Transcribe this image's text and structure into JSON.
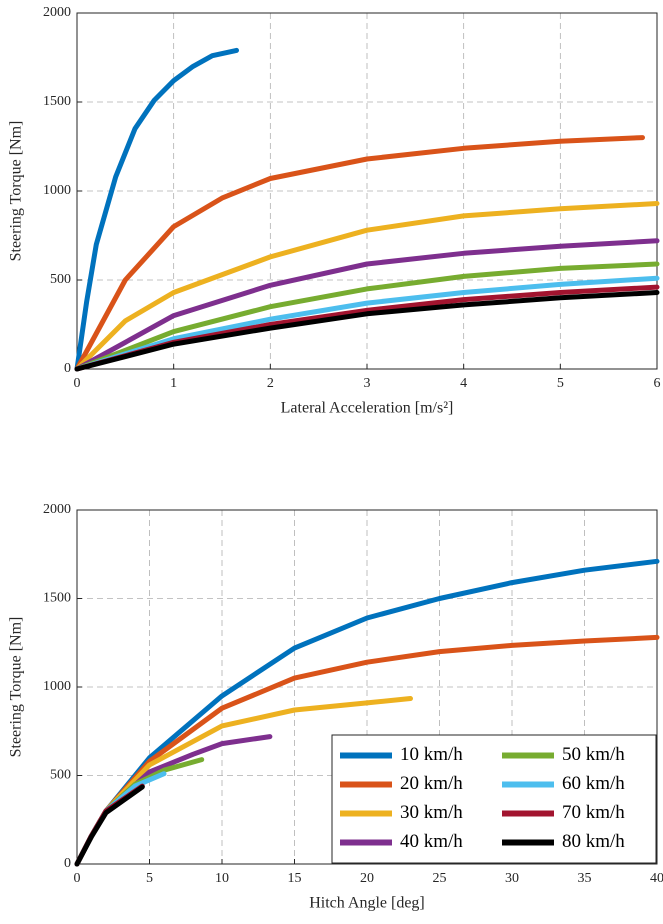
{
  "chart_data": [
    {
      "type": "line",
      "xlabel": "Lateral Acceleration [m/s²]",
      "ylabel": "Steering Torque [Nm]",
      "xlim": [
        0,
        6
      ],
      "xticks": [
        0,
        1,
        2,
        3,
        4,
        5,
        6
      ],
      "ylim": [
        0,
        2000
      ],
      "yticks": [
        0,
        500,
        1000,
        1500,
        2000
      ],
      "grid": true,
      "series": [
        {
          "color": "#0072bd",
          "x": [
            0,
            0.1,
            0.2,
            0.4,
            0.6,
            0.8,
            1.0,
            1.2,
            1.4,
            1.65
          ],
          "values": [
            0,
            380,
            700,
            1080,
            1350,
            1510,
            1620,
            1700,
            1760,
            1790
          ]
        },
        {
          "color": "#d95319",
          "x": [
            0,
            0.5,
            1,
            1.5,
            2,
            3,
            4,
            5,
            5.85
          ],
          "values": [
            0,
            500,
            800,
            960,
            1070,
            1180,
            1240,
            1280,
            1300
          ]
        },
        {
          "color": "#edb120",
          "x": [
            0,
            0.5,
            1,
            2,
            3,
            4,
            5,
            6
          ],
          "values": [
            0,
            270,
            430,
            630,
            780,
            860,
            900,
            930
          ]
        },
        {
          "color": "#7e2f8e",
          "x": [
            0,
            1,
            2,
            3,
            4,
            5,
            6
          ],
          "values": [
            0,
            300,
            470,
            590,
            650,
            690,
            720
          ]
        },
        {
          "color": "#77ac30",
          "x": [
            0,
            1,
            2,
            3,
            4,
            5,
            6
          ],
          "values": [
            0,
            210,
            350,
            450,
            520,
            565,
            590
          ]
        },
        {
          "color": "#4dbeee",
          "x": [
            0,
            1,
            2,
            3,
            4,
            5,
            6
          ],
          "values": [
            0,
            170,
            280,
            370,
            430,
            475,
            510
          ]
        },
        {
          "color": "#a2142f",
          "x": [
            0,
            1,
            2,
            3,
            4,
            5,
            6
          ],
          "values": [
            0,
            150,
            250,
            330,
            390,
            430,
            460
          ]
        },
        {
          "color": "#000000",
          "x": [
            0,
            1,
            2,
            3,
            4,
            5,
            6
          ],
          "values": [
            0,
            140,
            230,
            310,
            360,
            400,
            430
          ]
        }
      ]
    },
    {
      "type": "line",
      "xlabel": "Hitch Angle [deg]",
      "ylabel": "Steering Torque [Nm]",
      "xlim": [
        0,
        40
      ],
      "xticks": [
        0,
        5,
        10,
        15,
        20,
        25,
        30,
        35,
        40
      ],
      "ylim": [
        0,
        2000
      ],
      "yticks": [
        0,
        500,
        1000,
        1500,
        2000
      ],
      "grid": true,
      "legend": "lower right",
      "series": [
        {
          "name": "10 km/h",
          "color": "#0072bd",
          "x": [
            0,
            1,
            2,
            5,
            10,
            15,
            20,
            25,
            30,
            35,
            40
          ],
          "values": [
            0,
            160,
            300,
            600,
            950,
            1220,
            1390,
            1500,
            1590,
            1660,
            1710
          ]
        },
        {
          "name": "20 km/h",
          "color": "#d95319",
          "x": [
            0,
            1,
            2,
            5,
            10,
            15,
            20,
            25,
            30,
            35,
            40
          ],
          "values": [
            0,
            160,
            300,
            580,
            880,
            1050,
            1140,
            1200,
            1235,
            1260,
            1280
          ]
        },
        {
          "name": "30 km/h",
          "color": "#edb120",
          "x": [
            0,
            1,
            2,
            5,
            10,
            15,
            20,
            23
          ],
          "values": [
            0,
            160,
            300,
            560,
            780,
            870,
            910,
            935
          ]
        },
        {
          "name": "40 km/h",
          "color": "#7e2f8e",
          "x": [
            0,
            1,
            2,
            5,
            8,
            10,
            13.3
          ],
          "values": [
            0,
            160,
            300,
            520,
            620,
            680,
            720
          ]
        },
        {
          "name": "50 km/h",
          "color": "#77ac30",
          "x": [
            0,
            1,
            2,
            4,
            6,
            8.6
          ],
          "values": [
            0,
            160,
            300,
            450,
            530,
            590
          ]
        },
        {
          "name": "60 km/h",
          "color": "#4dbeee",
          "x": [
            0,
            1,
            2,
            4,
            6
          ],
          "values": [
            0,
            160,
            300,
            440,
            510
          ]
        },
        {
          "name": "70 km/h",
          "color": "#a2142f",
          "x": [
            0,
            1,
            2,
            4.5
          ],
          "values": [
            0,
            160,
            300,
            440
          ]
        },
        {
          "name": "80 km/h",
          "color": "#000000",
          "x": [
            0,
            1,
            2,
            4.5
          ],
          "values": [
            0,
            155,
            290,
            435
          ]
        }
      ]
    }
  ]
}
